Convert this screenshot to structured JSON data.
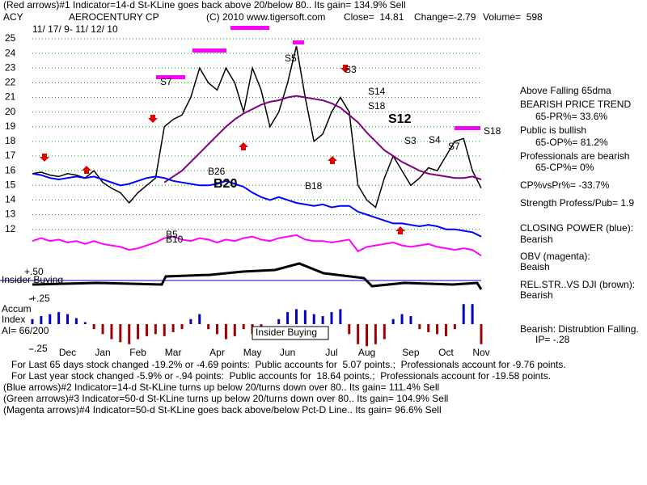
{
  "header": {
    "title": "(Red arrows)#1 Indicator=14-d St-KLine goes back above 20/below 80.. Its gain= 134.9% Sell",
    "symbol": "ACY",
    "company": "AEROCENTURY CP",
    "copyright": "(C) 2010 www.tigersoft.com",
    "close": "Close=  14.81",
    "change": "Change=-2.79",
    "volume": "Volume=  598",
    "dates": "11/ 17/ 9- 11/ 12/ 10"
  },
  "chart_data": [
    {
      "type": "line",
      "categories": [
        null,
        null,
        null,
        null,
        "Dec",
        null,
        null,
        null,
        "Jan",
        null,
        null,
        null,
        "Feb",
        null,
        null,
        null,
        "Mar",
        null,
        null,
        null,
        null,
        "Apr",
        null,
        null,
        null,
        "May",
        null,
        null,
        null,
        "Jun",
        null,
        null,
        null,
        null,
        "Jul",
        null,
        null,
        null,
        "Aug",
        null,
        null,
        null,
        null,
        "Sep",
        null,
        null,
        null,
        "Oct",
        null,
        null,
        null,
        "Nov"
      ],
      "series": [
        {
          "color": "#000000",
          "values": [
            15.8,
            15.9,
            15.7,
            15.6,
            15.8,
            15.7,
            15.5,
            16.0,
            15.2,
            14.8,
            14.5,
            13.8,
            14.5,
            15.0,
            15.5,
            19.0,
            19.5,
            19.8,
            21.0,
            23.0,
            22.0,
            21.5,
            23.0,
            22.0,
            20.0,
            23.0,
            21.5,
            19.0,
            20.0,
            22.0,
            24.5,
            21.0,
            18.0,
            18.5,
            20.0,
            21.0,
            20.0,
            15.0,
            14.0,
            13.5,
            15.5,
            17.0,
            16.0,
            15.0,
            15.5,
            16.2,
            16.0,
            17.0,
            18.0,
            18.2,
            16.0,
            14.81
          ]
        },
        {
          "color": "#800080",
          "values": [
            null,
            null,
            null,
            null,
            null,
            null,
            null,
            null,
            null,
            null,
            null,
            null,
            null,
            null,
            null,
            15.2,
            15.6,
            16.0,
            16.6,
            17.2,
            17.8,
            18.4,
            19.0,
            19.5,
            19.9,
            20.2,
            20.5,
            20.7,
            20.8,
            21.0,
            21.1,
            21.0,
            20.9,
            20.8,
            20.6,
            20.3,
            19.8,
            19.3,
            18.6,
            18.0,
            17.4,
            17.0,
            16.6,
            16.3,
            16.0,
            15.8,
            15.7,
            15.6,
            15.5,
            15.5,
            15.6,
            15.4
          ]
        },
        {
          "color": "#0000ff",
          "values": [
            15.8,
            15.7,
            15.5,
            15.4,
            15.5,
            15.6,
            15.5,
            15.6,
            15.4,
            15.2,
            15.0,
            15.1,
            15.3,
            15.5,
            15.6,
            15.5,
            15.3,
            15.2,
            15.1,
            15.0,
            15.0,
            15.1,
            15.3,
            15.1,
            14.9,
            14.5,
            14.2,
            14.0,
            14.2,
            14.0,
            13.8,
            13.7,
            13.6,
            13.7,
            13.5,
            13.6,
            13.6,
            13.2,
            13.0,
            12.8,
            12.6,
            12.4,
            12.4,
            12.3,
            12.2,
            12.3,
            12.2,
            12.0,
            12.0,
            11.9,
            11.8,
            11.5
          ]
        },
        {
          "color": "#ff00ff",
          "values": [
            11.2,
            11.4,
            11.2,
            11.3,
            11.1,
            11.2,
            11.0,
            11.2,
            11.0,
            10.9,
            10.8,
            10.6,
            10.7,
            10.9,
            11.1,
            11.4,
            11.5,
            11.3,
            11.2,
            11.4,
            11.3,
            11.1,
            11.3,
            11.2,
            11.4,
            11.5,
            11.3,
            11.2,
            11.4,
            11.5,
            11.6,
            11.3,
            11.2,
            11.2,
            11.1,
            11.2,
            11.3,
            10.5,
            10.8,
            10.9,
            11.0,
            11.1,
            10.9,
            10.8,
            10.9,
            11.0,
            10.8,
            10.7,
            10.6,
            10.7,
            10.6,
            10.2
          ]
        }
      ],
      "ylim": [
        9.5,
        26
      ],
      "yticks": [
        12,
        13,
        14,
        15,
        16,
        17,
        18,
        19,
        20,
        21,
        22,
        23,
        24,
        25
      ],
      "grid": true,
      "grid_color": "#00a000"
    },
    {
      "type": "bar",
      "ylabel_lines": [
        "Accum",
        "Index"
      ],
      "annotation": "AI= 66/200",
      "color": "#0000c0",
      "negative_color": "#a00000",
      "values": [
        0.05,
        0.08,
        0.1,
        0.12,
        0.1,
        0.06,
        0.02,
        -0.05,
        -0.1,
        -0.15,
        -0.18,
        -0.2,
        -0.15,
        -0.12,
        -0.1,
        -0.12,
        -0.08,
        -0.05,
        0.05,
        0.1,
        -0.05,
        -0.1,
        -0.15,
        -0.12,
        -0.05,
        -0.1,
        -0.08,
        0.0,
        0.05,
        0.12,
        0.15,
        0.14,
        0.1,
        0.08,
        0.12,
        0.15,
        -0.1,
        -0.2,
        -0.22,
        -0.2,
        -0.15,
        0.05,
        0.1,
        0.08,
        -0.05,
        -0.08,
        -0.1,
        -0.12,
        -0.05,
        0.2,
        0.2,
        -0.2
      ],
      "ylim": [
        -0.25,
        0.25
      ],
      "yticks": [
        {
          "value": 0.25,
          "label": "+.25"
        },
        {
          "value": -0.25,
          "label": "-.25"
        }
      ]
    }
  ],
  "insider": {
    "scale": "+.50",
    "label": "Insider Buying"
  },
  "annotations": [
    "S7",
    "S5",
    "S3",
    "S14",
    "S18",
    "S12",
    "S3",
    "S4",
    "S7",
    "S18",
    "B26",
    "B20",
    "B18",
    "B5",
    "B10",
    "Insider Buying"
  ],
  "panel": [
    "Above Falling 65dma",
    "BEARISH PRICE TREND",
    "65-PR%= 33.6%",
    "Public is bullish",
    "65-OP%= 81.2%",
    "Professionals are bearish",
    "65-CP%= 0%",
    "CP%vsPr%= -33.7%",
    "Strength Profess/Pub= 1.9",
    "CLOSING POWER (blue):",
    "Bearish",
    "OBV (magenta):",
    "Beaish",
    "REL.STR..VS DJI (brown):",
    "Bearish",
    "Bearish: Distrubtion Falling.",
    "IP= -.28"
  ],
  "footer": [
    "For Last 65 days stock changed -19.2% or -4.69 points:  Public accounts for  5.07 points.;  Professionals account for -9.76 points.",
    "For Last year stock changed -5.9% or -.94 points:  Public accounts for  18.64 points.;  Professionals account for -19.58 points.",
    "(Blue arrows)#2 Indicator=14-d St-KLine turns up below 20/turns down over 80.. Its gain= 111.4% Sell",
    "(Green arrows)#3 Indicator=50-d St-KLine turns up below 20/turns down over 80.. Its gain= 104.9% Sell",
    "(Magenta arrows)#4 Indicator=50-d St-KLine goes back above/below Pct-D Line.. Its gain= 96.6% Sell"
  ]
}
